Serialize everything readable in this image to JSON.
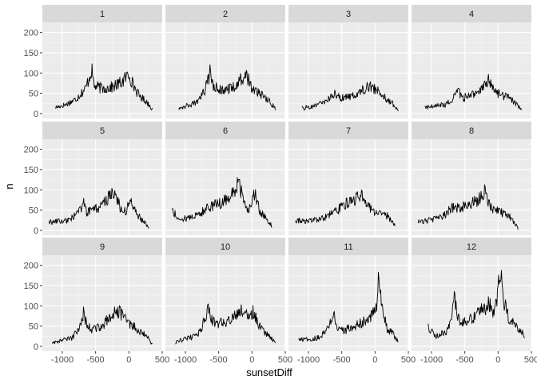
{
  "chart_data": {
    "type": "line",
    "xlabel": "sunsetDiff",
    "ylabel": "n",
    "xlim": [
      -1300,
      500
    ],
    "ylim": [
      -12,
      225
    ],
    "x_ticks": [
      -1000,
      -500,
      0,
      500
    ],
    "x_tick_labels": [
      "-1000",
      "-500",
      "0",
      "500"
    ],
    "y_ticks": [
      0,
      50,
      100,
      150,
      200
    ],
    "y_tick_labels": [
      "0",
      "50",
      "100",
      "150",
      "200"
    ],
    "grid": true,
    "legend": "none",
    "facet_layout": {
      "rows": 3,
      "cols": 4
    },
    "colors": {
      "panel_bg": "#ebebeb",
      "strip_bg": "#d9d9d9",
      "grid_major": "#ffffff",
      "line": "#000000"
    },
    "panels": [
      {
        "label": "1",
        "x_range": [
          -1100,
          350
        ],
        "points": [
          [
            -1100,
            15
          ],
          [
            -950,
            22
          ],
          [
            -800,
            35
          ],
          [
            -650,
            62
          ],
          [
            -560,
            108
          ],
          [
            -520,
            68
          ],
          [
            -400,
            62
          ],
          [
            -250,
            65
          ],
          [
            -100,
            78
          ],
          [
            0,
            98
          ],
          [
            60,
            72
          ],
          [
            150,
            45
          ],
          [
            260,
            30
          ],
          [
            350,
            12
          ]
        ]
      },
      {
        "label": "2",
        "x_range": [
          -1100,
          350
        ],
        "points": [
          [
            -1100,
            15
          ],
          [
            -950,
            20
          ],
          [
            -800,
            30
          ],
          [
            -700,
            60
          ],
          [
            -620,
            108
          ],
          [
            -580,
            65
          ],
          [
            -450,
            58
          ],
          [
            -300,
            62
          ],
          [
            -150,
            85
          ],
          [
            -80,
            95
          ],
          [
            0,
            62
          ],
          [
            150,
            45
          ],
          [
            260,
            30
          ],
          [
            350,
            12
          ]
        ]
      },
      {
        "label": "3",
        "x_range": [
          -1100,
          350
        ],
        "points": [
          [
            -1100,
            12
          ],
          [
            -950,
            18
          ],
          [
            -800,
            25
          ],
          [
            -700,
            35
          ],
          [
            -600,
            50
          ],
          [
            -520,
            38
          ],
          [
            -400,
            40
          ],
          [
            -250,
            52
          ],
          [
            -150,
            62
          ],
          [
            -100,
            70
          ],
          [
            0,
            60
          ],
          [
            150,
            40
          ],
          [
            260,
            25
          ],
          [
            350,
            5
          ]
        ]
      },
      {
        "label": "4",
        "x_range": [
          -1100,
          350
        ],
        "points": [
          [
            -1100,
            15
          ],
          [
            -950,
            18
          ],
          [
            -800,
            22
          ],
          [
            -700,
            30
          ],
          [
            -600,
            58
          ],
          [
            -540,
            38
          ],
          [
            -400,
            45
          ],
          [
            -250,
            60
          ],
          [
            -150,
            82
          ],
          [
            -80,
            65
          ],
          [
            0,
            50
          ],
          [
            150,
            40
          ],
          [
            260,
            25
          ],
          [
            350,
            12
          ]
        ]
      },
      {
        "label": "5",
        "x_range": [
          -1200,
          300
        ],
        "points": [
          [
            -1200,
            20
          ],
          [
            -1050,
            22
          ],
          [
            -900,
            25
          ],
          [
            -750,
            45
          ],
          [
            -680,
            70
          ],
          [
            -640,
            45
          ],
          [
            -500,
            52
          ],
          [
            -350,
            70
          ],
          [
            -250,
            98
          ],
          [
            -180,
            80
          ],
          [
            -100,
            40
          ],
          [
            -40,
            50
          ],
          [
            20,
            75
          ],
          [
            120,
            40
          ],
          [
            260,
            15
          ],
          [
            300,
            5
          ]
        ]
      },
      {
        "label": "6",
        "x_range": [
          -1200,
          300
        ],
        "points": [
          [
            -1200,
            50
          ],
          [
            -1100,
            28
          ],
          [
            -950,
            30
          ],
          [
            -800,
            40
          ],
          [
            -650,
            58
          ],
          [
            -500,
            65
          ],
          [
            -400,
            75
          ],
          [
            -300,
            88
          ],
          [
            -200,
            118
          ],
          [
            -120,
            70
          ],
          [
            -60,
            45
          ],
          [
            0,
            70
          ],
          [
            40,
            92
          ],
          [
            120,
            48
          ],
          [
            220,
            30
          ],
          [
            300,
            10
          ]
        ]
      },
      {
        "label": "7",
        "x_range": [
          -1200,
          300
        ],
        "points": [
          [
            -1200,
            25
          ],
          [
            -1050,
            22
          ],
          [
            -900,
            25
          ],
          [
            -750,
            32
          ],
          [
            -600,
            45
          ],
          [
            -450,
            65
          ],
          [
            -300,
            78
          ],
          [
            -200,
            88
          ],
          [
            -150,
            70
          ],
          [
            -80,
            55
          ],
          [
            0,
            45
          ],
          [
            80,
            42
          ],
          [
            200,
            35
          ],
          [
            300,
            10
          ]
        ]
      },
      {
        "label": "8",
        "x_range": [
          -1200,
          300
        ],
        "points": [
          [
            -1200,
            20
          ],
          [
            -1050,
            25
          ],
          [
            -900,
            30
          ],
          [
            -800,
            38
          ],
          [
            -700,
            55
          ],
          [
            -600,
            55
          ],
          [
            -450,
            62
          ],
          [
            -300,
            75
          ],
          [
            -200,
            95
          ],
          [
            -150,
            72
          ],
          [
            -80,
            50
          ],
          [
            0,
            48
          ],
          [
            100,
            40
          ],
          [
            200,
            30
          ],
          [
            300,
            5
          ]
        ]
      },
      {
        "label": "9",
        "x_range": [
          -1150,
          350
        ],
        "points": [
          [
            -1150,
            10
          ],
          [
            -1000,
            15
          ],
          [
            -850,
            20
          ],
          [
            -750,
            48
          ],
          [
            -680,
            85
          ],
          [
            -640,
            55
          ],
          [
            -550,
            42
          ],
          [
            -400,
            48
          ],
          [
            -300,
            72
          ],
          [
            -200,
            92
          ],
          [
            -100,
            78
          ],
          [
            0,
            55
          ],
          [
            150,
            40
          ],
          [
            280,
            22
          ],
          [
            350,
            5
          ]
        ]
      },
      {
        "label": "10",
        "x_range": [
          -1150,
          350
        ],
        "points": [
          [
            -1150,
            10
          ],
          [
            -1000,
            18
          ],
          [
            -850,
            25
          ],
          [
            -750,
            45
          ],
          [
            -650,
            100
          ],
          [
            -600,
            65
          ],
          [
            -500,
            55
          ],
          [
            -400,
            60
          ],
          [
            -300,
            68
          ],
          [
            -200,
            88
          ],
          [
            -130,
            92
          ],
          [
            -60,
            68
          ],
          [
            20,
            88
          ],
          [
            100,
            55
          ],
          [
            220,
            30
          ],
          [
            350,
            12
          ]
        ]
      },
      {
        "label": "11",
        "x_range": [
          -1150,
          350
        ],
        "points": [
          [
            -1150,
            15
          ],
          [
            -1000,
            18
          ],
          [
            -850,
            22
          ],
          [
            -750,
            35
          ],
          [
            -620,
            80
          ],
          [
            -580,
            50
          ],
          [
            -450,
            40
          ],
          [
            -300,
            50
          ],
          [
            -150,
            62
          ],
          [
            -50,
            75
          ],
          [
            30,
            105
          ],
          [
            60,
            180
          ],
          [
            110,
            90
          ],
          [
            180,
            45
          ],
          [
            280,
            28
          ],
          [
            350,
            12
          ]
        ]
      },
      {
        "label": "12",
        "x_range": [
          -1050,
          400
        ],
        "points": [
          [
            -1050,
            50
          ],
          [
            -950,
            25
          ],
          [
            -850,
            32
          ],
          [
            -750,
            40
          ],
          [
            -700,
            80
          ],
          [
            -660,
            125
          ],
          [
            -620,
            80
          ],
          [
            -550,
            60
          ],
          [
            -450,
            65
          ],
          [
            -300,
            80
          ],
          [
            -200,
            95
          ],
          [
            -120,
            108
          ],
          [
            -60,
            72
          ],
          [
            0,
            135
          ],
          [
            40,
            200
          ],
          [
            80,
            118
          ],
          [
            160,
            70
          ],
          [
            250,
            50
          ],
          [
            330,
            40
          ],
          [
            400,
            28
          ]
        ]
      }
    ]
  }
}
